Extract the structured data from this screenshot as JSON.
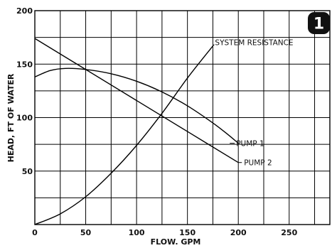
{
  "chart_data": {
    "type": "line",
    "badge": "1",
    "xlabel": "FLOW. GPM",
    "ylabel": "HEAD, FT OF WATER",
    "xlim": [
      0,
      290
    ],
    "ylim": [
      0,
      200
    ],
    "x_ticks": [
      0,
      50,
      100,
      150,
      200,
      250
    ],
    "y_ticks": [
      50,
      100,
      150,
      200
    ],
    "x_grid_step": 25,
    "y_grid_step": 25,
    "grid": true,
    "series": [
      {
        "name": "PUMP 1",
        "x": [
          0,
          15,
          30,
          50,
          75,
          100,
          125,
          150,
          175,
          190,
          200
        ],
        "y": [
          138,
          144,
          146,
          145,
          141,
          134,
          124,
          111,
          95,
          84,
          76
        ]
      },
      {
        "name": "PUMP 2",
        "x": [
          0,
          50,
          100,
          150,
          200
        ],
        "y": [
          174,
          145,
          116,
          87,
          58
        ]
      },
      {
        "name": "SYSTEM RESISTANCE",
        "x": [
          0,
          25,
          50,
          75,
          100,
          125,
          150,
          175
        ],
        "y": [
          0,
          10,
          26,
          48,
          74,
          104,
          137,
          167
        ]
      }
    ]
  }
}
